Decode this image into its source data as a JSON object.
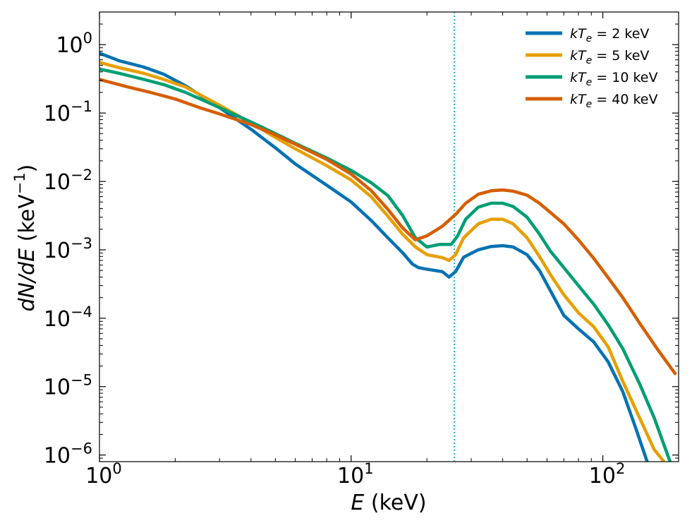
{
  "chart_data": {
    "type": "line",
    "title": "",
    "xlabel": {
      "var": "E",
      "unit": "(keV)"
    },
    "ylabel": {
      "var": "dN/dE",
      "unit": "(keV",
      "exp": "−1",
      "close": ")"
    },
    "xscale": "log",
    "yscale": "log",
    "xlim": [
      1,
      200
    ],
    "ylim": [
      8e-07,
      3
    ],
    "xticks": [
      {
        "value": 1,
        "base": "10",
        "exp": "0"
      },
      {
        "value": 10,
        "base": "10",
        "exp": "1"
      },
      {
        "value": 100,
        "base": "10",
        "exp": "2"
      }
    ],
    "yticks": [
      {
        "value": 1e-06,
        "base": "10",
        "exp": "−6"
      },
      {
        "value": 1e-05,
        "base": "10",
        "exp": "−5"
      },
      {
        "value": 0.0001,
        "base": "10",
        "exp": "−4"
      },
      {
        "value": 0.001,
        "base": "10",
        "exp": "−3"
      },
      {
        "value": 0.01,
        "base": "10",
        "exp": "−2"
      },
      {
        "value": 0.1,
        "base": "10",
        "exp": "−1"
      },
      {
        "value": 1,
        "base": "10",
        "exp": "0"
      }
    ],
    "grid": false,
    "legend_position": "top-right",
    "vline": {
      "x": 25.7,
      "color": "#17becf",
      "style": "dotted"
    },
    "series": [
      {
        "name": "kTe = 2 keV",
        "label": {
          "k": "k",
          "T": "T",
          "sub": "e",
          "rest": " = 2 keV"
        },
        "color": "#0072b2",
        "x": [
          1.0,
          1.2,
          1.5,
          1.8,
          2.2,
          3.0,
          4.0,
          5.0,
          6.0,
          8.0,
          10.0,
          12.0,
          14.0,
          16.0,
          17.5,
          18.5,
          20.0,
          23.0,
          24.5,
          26.0,
          28.0,
          32.0,
          36.0,
          40.0,
          44.0,
          50.0,
          56.0,
          62.0,
          70.0,
          80.0,
          92.0,
          105.0,
          120.0,
          135.0,
          150.0
        ],
        "y": [
          0.75,
          0.58,
          0.47,
          0.37,
          0.25,
          0.12,
          0.058,
          0.031,
          0.018,
          0.0088,
          0.005,
          0.0027,
          0.0015,
          0.00091,
          0.00062,
          0.00055,
          0.00052,
          0.00048,
          0.0004,
          0.00048,
          0.00078,
          0.001,
          0.00112,
          0.00115,
          0.0011,
          0.00085,
          0.0005,
          0.00025,
          0.00011,
          7e-05,
          4.5e-05,
          2.3e-05,
          8.5e-06,
          2.5e-06,
          8e-07
        ]
      },
      {
        "name": "kTe = 5 keV",
        "label": {
          "k": "k",
          "T": "T",
          "sub": "e",
          "rest": " = 5 keV"
        },
        "color": "#e69f00",
        "x": [
          1.0,
          1.2,
          1.5,
          1.8,
          2.2,
          3.0,
          4.0,
          5.0,
          6.0,
          8.0,
          10.0,
          12.0,
          14.0,
          16.0,
          18.0,
          20.0,
          23.0,
          24.5,
          26.0,
          28.0,
          32.0,
          36.0,
          40.0,
          44.0,
          50.0,
          56.0,
          62.0,
          70.0,
          80.0,
          92.0,
          105.0,
          120.0,
          140.0,
          160.0,
          175.0
        ],
        "y": [
          0.55,
          0.46,
          0.38,
          0.31,
          0.24,
          0.13,
          0.072,
          0.044,
          0.03,
          0.017,
          0.0105,
          0.006,
          0.0031,
          0.0017,
          0.0011,
          0.00085,
          0.00077,
          0.0007,
          0.00085,
          0.0015,
          0.0024,
          0.0028,
          0.0028,
          0.0024,
          0.0015,
          0.0008,
          0.00043,
          0.00022,
          0.00012,
          7.5e-05,
          3.8e-05,
          1.2e-05,
          3.5e-06,
          1.2e-06,
          8e-07
        ]
      },
      {
        "name": "kTe = 10 keV",
        "label": {
          "k": "k",
          "T": "T",
          "sub": "e",
          "rest": " = 10 keV"
        },
        "color": "#009e73",
        "x": [
          1.0,
          1.2,
          1.5,
          1.8,
          2.2,
          3.0,
          4.0,
          5.0,
          6.0,
          8.0,
          10.0,
          12.0,
          14.0,
          16.0,
          18.0,
          20.0,
          22.5,
          25.0,
          26.5,
          28.5,
          32.0,
          36.0,
          40.0,
          44.0,
          50.0,
          56.0,
          62.0,
          70.0,
          80.0,
          92.0,
          105.0,
          120.0,
          140.0,
          160.0,
          185.0
        ],
        "y": [
          0.44,
          0.38,
          0.31,
          0.26,
          0.2,
          0.12,
          0.074,
          0.05,
          0.036,
          0.022,
          0.0145,
          0.0096,
          0.0062,
          0.0032,
          0.0015,
          0.0011,
          0.0012,
          0.0012,
          0.0016,
          0.0028,
          0.0042,
          0.0048,
          0.0048,
          0.0043,
          0.003,
          0.0017,
          0.00095,
          0.00055,
          0.0003,
          0.00016,
          8e-05,
          3.6e-05,
          1.1e-05,
          3.5e-06,
          8e-07
        ]
      },
      {
        "name": "kTe = 40 keV",
        "label": {
          "k": "k",
          "T": "T",
          "sub": "e",
          "rest": " = 40 keV"
        },
        "color": "#d55e00",
        "x": [
          1.0,
          1.3,
          1.6,
          2.0,
          2.5,
          3.0,
          4.0,
          5.0,
          6.0,
          8.0,
          10.0,
          12.0,
          14.0,
          16.0,
          18.0,
          20.0,
          23.0,
          26.0,
          28.5,
          32.0,
          36.0,
          40.0,
          44.0,
          50.0,
          56.0,
          62.0,
          70.0,
          80.0,
          92.0,
          105.0,
          120.0,
          140.0,
          165.0,
          195.0
        ],
        "y": [
          0.31,
          0.24,
          0.2,
          0.16,
          0.12,
          0.097,
          0.068,
          0.048,
          0.035,
          0.021,
          0.0128,
          0.0074,
          0.0039,
          0.0021,
          0.0014,
          0.0016,
          0.0022,
          0.0033,
          0.0048,
          0.0065,
          0.0073,
          0.0075,
          0.0072,
          0.0063,
          0.0048,
          0.0035,
          0.0024,
          0.0014,
          0.00075,
          0.00039,
          0.0002,
          8.5e-05,
          3.5e-05,
          1.5e-05
        ]
      }
    ]
  }
}
